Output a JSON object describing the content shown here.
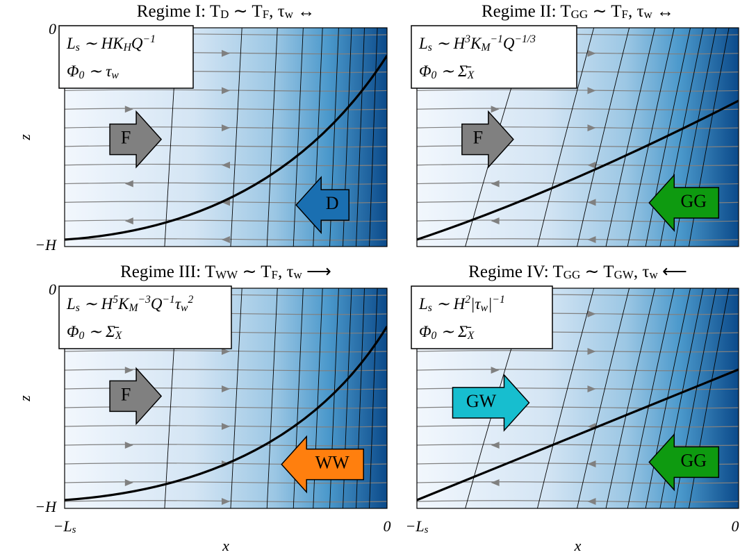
{
  "panels": [
    {
      "title": [
        "Regime I: T",
        {
          "sub": "D"
        },
        " ∼ T",
        {
          "sub": "F"
        },
        ", τ",
        {
          "sub": "w"
        },
        " ↔"
      ],
      "box": [
        [
          "L",
          {
            "sub": "s"
          },
          " ∼ HK",
          {
            "sub": "H"
          },
          "Q",
          {
            "sup": "−1"
          }
        ],
        [
          "Φ",
          {
            "sub": "0"
          },
          " ∼ τ",
          {
            "sub": "w"
          }
        ]
      ],
      "arrows": [
        "F",
        "D"
      ],
      "ylabel": "z",
      "yticks": [
        "0",
        "−H"
      ]
    },
    {
      "title": [
        "Regime II: T",
        {
          "sub": "GG"
        },
        " ∼ T",
        {
          "sub": "F"
        },
        ", τ",
        {
          "sub": "w"
        },
        " ↔"
      ],
      "box": [
        [
          "L",
          {
            "sub": "s"
          },
          " ∼ H",
          {
            "sup": "3"
          },
          "K",
          {
            "sub": "M"
          },
          {
            "sup": "−1"
          },
          "Q",
          {
            "sup": "−1/3"
          }
        ],
        [
          "Φ",
          {
            "sub": "0"
          },
          " ∼ Σ̄",
          {
            "sub": "X"
          }
        ]
      ],
      "arrows": [
        "F",
        "GG"
      ]
    },
    {
      "title": [
        "Regime III: T",
        {
          "sub": "WW"
        },
        " ∼ T",
        {
          "sub": "F"
        },
        ", τ",
        {
          "sub": "w"
        },
        " ⟶"
      ],
      "box": [
        [
          "L",
          {
            "sub": "s"
          },
          " ∼ H",
          {
            "sup": "5"
          },
          "K",
          {
            "sub": "M"
          },
          {
            "sup": "−3"
          },
          "Q",
          {
            "sup": "−1"
          },
          "τ",
          {
            "sub": "w"
          },
          {
            "sup": "2"
          }
        ],
        [
          "Φ",
          {
            "sub": "0"
          },
          " ∼ Σ̄",
          {
            "sub": "X"
          }
        ]
      ],
      "arrows": [
        "F",
        "WW"
      ],
      "ylabel": "z",
      "yticks": [
        "0",
        "−H"
      ],
      "xticks": [
        [
          "−L",
          {
            "sub": "s"
          }
        ],
        "0"
      ],
      "xlabel": "x"
    },
    {
      "title": [
        "Regime IV: T",
        {
          "sub": "GG"
        },
        " ∼ T",
        {
          "sub": "GW"
        },
        ", τ",
        {
          "sub": "w"
        },
        " ⟵"
      ],
      "box": [
        [
          "L",
          {
            "sub": "s"
          },
          " ∼ H",
          {
            "sup": "2"
          },
          "|τ",
          {
            "sub": "w"
          },
          "|",
          {
            "sup": "−1"
          }
        ],
        [
          "Φ",
          {
            "sub": "0"
          },
          " ∼ Σ̄",
          {
            "sub": "X"
          }
        ]
      ],
      "arrows": [
        "GW",
        "GG"
      ],
      "xticks": [
        [
          "−L",
          {
            "sub": "s"
          }
        ],
        "0"
      ],
      "xlabel": "x"
    }
  ]
}
